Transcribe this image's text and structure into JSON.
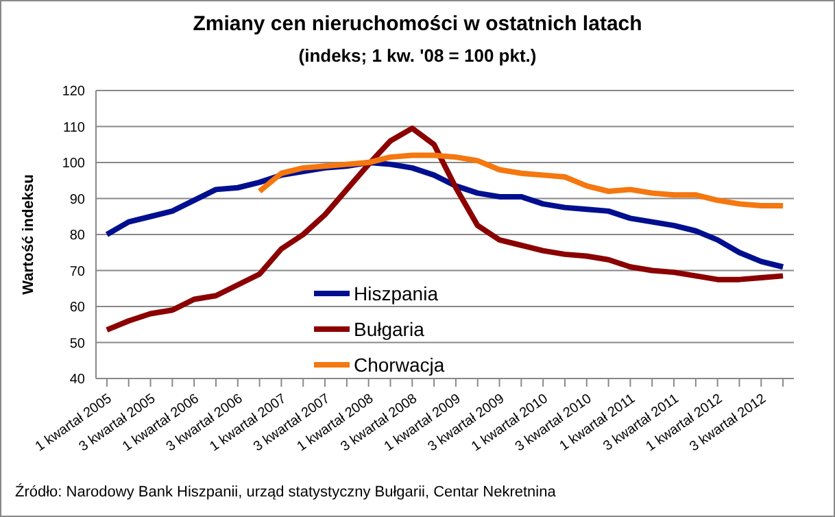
{
  "chart_data": {
    "type": "line",
    "title": "Zmiany cen nieruchomości w ostatnich latach",
    "subtitle": "(indeks; 1 kw. '08 = 100 pkt.)",
    "ylabel": "Wartość indeksu",
    "categories": [
      "1 kwartał 2005",
      null,
      "3 kwartał 2005",
      null,
      "1 kwartał 2006",
      null,
      "3 kwartał 2006",
      null,
      "1 kwartał 2007",
      null,
      "3 kwartał 2007",
      null,
      "1 kwartał 2008",
      null,
      "3 kwartał 2008",
      null,
      "1 kwartał 2009",
      null,
      "3 kwartał 2009",
      null,
      "1 kwartał 2010",
      null,
      "3 kwartał 2010",
      null,
      "1 kwartał 2011",
      null,
      "3 kwartał 2011",
      null,
      "1 kwartał 2012",
      null,
      "3 kwartał 2012",
      null
    ],
    "series": [
      {
        "name": "Hiszpania",
        "color": "#000f8f",
        "values": [
          80,
          83.5,
          85,
          86.5,
          89.5,
          92.5,
          93,
          94.5,
          96.5,
          97.5,
          98.5,
          99,
          100,
          99.5,
          98.5,
          96.5,
          93.5,
          91.5,
          90.5,
          90.5,
          88.5,
          87.5,
          87,
          86.5,
          84.5,
          83.5,
          82.5,
          81,
          78.5,
          75,
          72.5,
          71
        ]
      },
      {
        "name": "Bułgaria",
        "color": "#8b0000",
        "values": [
          53.5,
          56,
          58,
          59,
          62,
          63,
          66,
          69,
          76,
          80,
          85.5,
          92.5,
          99.5,
          106,
          109.5,
          105,
          93,
          82.5,
          78.5,
          77,
          75.5,
          74.5,
          74,
          73,
          71,
          70,
          69.5,
          68.5,
          67.5,
          67.5,
          68,
          68.5
        ]
      },
      {
        "name": "Chorwacja",
        "color": "#f5770f",
        "values": [
          null,
          null,
          null,
          null,
          null,
          null,
          null,
          92,
          97,
          98.5,
          99,
          99.5,
          100,
          101.5,
          102,
          102,
          101.5,
          100.5,
          98,
          97,
          96.5,
          96,
          93.5,
          92,
          92.5,
          91.5,
          91,
          91,
          89.5,
          88.5,
          88,
          88
        ]
      }
    ],
    "ylim": [
      40,
      120
    ],
    "yticks": [
      40,
      50,
      60,
      70,
      80,
      90,
      100,
      110,
      120
    ],
    "grid": "y",
    "legend": "bottom",
    "marker": "none",
    "line_style": "solid",
    "annotations": [
      "Źródło: Narodowy Bank Hiszpanii,  urząd statystyczny  Bułgarii, Centar Nekretnina"
    ]
  }
}
